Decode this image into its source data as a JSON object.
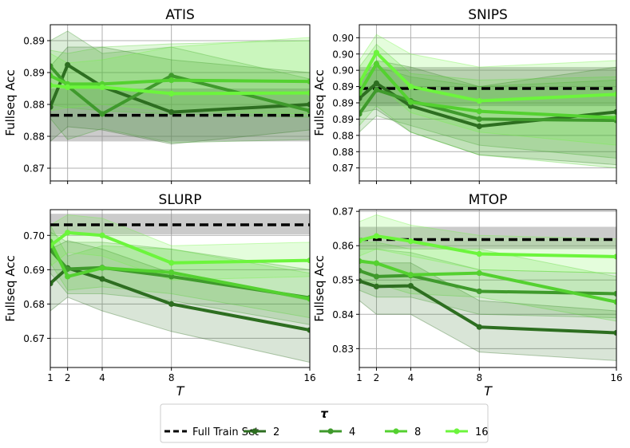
{
  "colors": {
    "tau_2": "#2d6e20",
    "tau_4": "#3f9a2c",
    "tau_8": "#54d130",
    "tau_16": "#6cf53c",
    "full_train": "#000000",
    "full_band": "#8c8c8c",
    "grid": "#b0b0b0"
  },
  "legend": {
    "title": "τ",
    "full_label": "Full Train Set",
    "entries": [
      "2",
      "4",
      "8",
      "16"
    ]
  },
  "chart_data": [
    {
      "type": "line",
      "title": "ATIS",
      "ylabel": "Fullseq Acc",
      "xlabel": "",
      "x": [
        1,
        2,
        4,
        8,
        16
      ],
      "xlim": [
        1,
        16
      ],
      "ylim": [
        0.868,
        0.8925
      ],
      "yticks": [
        0.87,
        0.875,
        0.88,
        0.885,
        0.89
      ],
      "ytick_labels": [
        "0.87",
        "0.88",
        "0.88",
        "0.89",
        "0.89"
      ],
      "show_xtick_labels": false,
      "full_train": {
        "value": 0.8783,
        "band": [
          0.8742,
          0.8825
        ]
      },
      "series": [
        {
          "name": "2",
          "values": [
            0.8796,
            0.8862,
            0.8828,
            0.8788,
            0.88
          ],
          "band_lo": [
            0.8742,
            0.8765,
            0.876,
            0.8738,
            0.876
          ],
          "band_hi": [
            0.886,
            0.889,
            0.889,
            0.887,
            0.885
          ]
        },
        {
          "name": "4",
          "values": [
            0.886,
            0.8829,
            0.8785,
            0.8845,
            0.879
          ],
          "band_lo": [
            0.8778,
            0.8745,
            0.8762,
            0.874,
            0.8745
          ],
          "band_hi": [
            0.89,
            0.8915,
            0.888,
            0.889,
            0.884
          ]
        },
        {
          "name": "8",
          "values": [
            0.8845,
            0.8832,
            0.8832,
            0.8838,
            0.8836
          ],
          "band_lo": [
            0.88,
            0.8795,
            0.879,
            0.8785,
            0.878
          ],
          "band_hi": [
            0.8885,
            0.888,
            0.889,
            0.8895,
            0.89
          ]
        },
        {
          "name": "16",
          "values": [
            0.883,
            0.8827,
            0.8827,
            0.8817,
            0.8818
          ],
          "band_lo": [
            0.879,
            0.8795,
            0.88,
            0.879,
            0.8785
          ],
          "band_hi": [
            0.888,
            0.8865,
            0.887,
            0.889,
            0.8905
          ]
        }
      ]
    },
    {
      "type": "line",
      "title": "SNIPS",
      "ylabel": "Fullseq Acc",
      "xlabel": "",
      "x": [
        1,
        2,
        4,
        8,
        16
      ],
      "xlim": [
        1,
        16
      ],
      "ylim": [
        0.8705,
        0.8945
      ],
      "yticks": [
        0.8725,
        0.875,
        0.8775,
        0.88,
        0.8825,
        0.885,
        0.8875,
        0.89,
        0.8925
      ],
      "ytick_labels": [
        "0.87",
        "0.88",
        "0.88",
        "0.89",
        "0.89",
        "0.89",
        "0.90",
        "0.90",
        "0.90"
      ],
      "show_xtick_labels": false,
      "full_train": {
        "value": 0.8847,
        "band": [
          0.882,
          0.888
        ]
      },
      "series": [
        {
          "name": "2",
          "values": [
            0.8832,
            0.8855,
            0.882,
            0.8789,
            0.8811
          ],
          "band_lo": [
            0.881,
            0.8815,
            0.878,
            0.8745,
            0.873
          ],
          "band_hi": [
            0.886,
            0.889,
            0.888,
            0.885,
            0.888
          ]
        },
        {
          "name": "4",
          "values": [
            0.8808,
            0.8845,
            0.8828,
            0.88,
            0.8798
          ],
          "band_lo": [
            0.878,
            0.8805,
            0.879,
            0.876,
            0.874
          ],
          "band_hi": [
            0.886,
            0.888,
            0.8865,
            0.885,
            0.886
          ]
        },
        {
          "name": "8",
          "values": [
            0.884,
            0.8885,
            0.8826,
            0.8812,
            0.8802
          ],
          "band_lo": [
            0.879,
            0.882,
            0.878,
            0.8745,
            0.8725
          ],
          "band_hi": [
            0.888,
            0.8915,
            0.887,
            0.886,
            0.8865
          ]
        },
        {
          "name": "16",
          "values": [
            0.8855,
            0.8902,
            0.885,
            0.8828,
            0.8838
          ],
          "band_lo": [
            0.881,
            0.8855,
            0.881,
            0.878,
            0.876
          ],
          "band_hi": [
            0.889,
            0.893,
            0.89,
            0.888,
            0.889
          ]
        }
      ]
    },
    {
      "type": "line",
      "title": "SLURP",
      "ylabel": "Fullseq Acc",
      "xlabel": "T",
      "x": [
        1,
        2,
        4,
        8,
        16
      ],
      "xlim": [
        1,
        16
      ],
      "ylim": [
        0.6615,
        0.7075
      ],
      "yticks": [
        0.67,
        0.68,
        0.69,
        0.7
      ],
      "ytick_labels": [
        "0.67",
        "0.68",
        "0.69",
        "0.70"
      ],
      "show_xtick_labels": true,
      "xtick_labels": [
        "1",
        "2",
        "4",
        "8",
        "16"
      ],
      "full_train": {
        "value": 0.7031,
        "band": [
          0.7003,
          0.7063
        ]
      },
      "series": [
        {
          "name": "2",
          "values": [
            0.686,
            0.6905,
            0.6873,
            0.68,
            0.6724
          ],
          "band_lo": [
            0.678,
            0.682,
            0.678,
            0.672,
            0.663
          ],
          "band_hi": [
            0.696,
            0.6985,
            0.696,
            0.689,
            0.681
          ]
        },
        {
          "name": "4",
          "values": [
            0.6958,
            0.6902,
            0.6906,
            0.688,
            0.6818
          ],
          "band_lo": [
            0.689,
            0.683,
            0.683,
            0.681,
            0.674
          ],
          "band_hi": [
            0.701,
            0.698,
            0.698,
            0.696,
            0.69
          ]
        },
        {
          "name": "8",
          "values": [
            0.6982,
            0.688,
            0.6905,
            0.6892,
            0.6815
          ],
          "band_lo": [
            0.692,
            0.684,
            0.685,
            0.683,
            0.676
          ],
          "band_hi": [
            0.703,
            0.694,
            0.697,
            0.696,
            0.689
          ]
        },
        {
          "name": "16",
          "values": [
            0.697,
            0.7008,
            0.7,
            0.692,
            0.6927
          ],
          "band_lo": [
            0.691,
            0.695,
            0.694,
            0.687,
            0.688
          ],
          "band_hi": [
            0.703,
            0.706,
            0.705,
            0.697,
            0.698
          ]
        }
      ]
    },
    {
      "type": "line",
      "title": "MTOP",
      "ylabel": "Fullseq Acc",
      "xlabel": "T",
      "x": [
        1,
        2,
        4,
        8,
        16
      ],
      "xlim": [
        1,
        16
      ],
      "ylim": [
        0.8245,
        0.8705
      ],
      "yticks": [
        0.83,
        0.84,
        0.85,
        0.86,
        0.87
      ],
      "ytick_labels": [
        "0.83",
        "0.84",
        "0.85",
        "0.86",
        "0.87"
      ],
      "show_xtick_labels": true,
      "xtick_labels": [
        "1",
        "2",
        "4",
        "8",
        "16"
      ],
      "full_train": {
        "value": 0.8618,
        "band": [
          0.859,
          0.8655
        ]
      },
      "series": [
        {
          "name": "2",
          "values": [
            0.8497,
            0.8481,
            0.8483,
            0.8363,
            0.8346
          ],
          "band_lo": [
            0.844,
            0.84,
            0.84,
            0.829,
            0.8265
          ],
          "band_hi": [
            0.856,
            0.855,
            0.855,
            0.844,
            0.841
          ]
        },
        {
          "name": "4",
          "values": [
            0.8527,
            0.851,
            0.8513,
            0.8467,
            0.846
          ],
          "band_lo": [
            0.847,
            0.845,
            0.845,
            0.84,
            0.839
          ],
          "band_hi": [
            0.859,
            0.859,
            0.858,
            0.853,
            0.852
          ]
        },
        {
          "name": "8",
          "values": [
            0.8555,
            0.8549,
            0.8515,
            0.852,
            0.8436
          ],
          "band_lo": [
            0.85,
            0.849,
            0.846,
            0.845,
            0.838
          ],
          "band_hi": [
            0.861,
            0.861,
            0.859,
            0.859,
            0.851
          ]
        },
        {
          "name": "16",
          "values": [
            0.8615,
            0.8628,
            0.8613,
            0.8576,
            0.8568
          ],
          "band_lo": [
            0.857,
            0.859,
            0.857,
            0.853,
            0.852
          ],
          "band_hi": [
            0.867,
            0.869,
            0.866,
            0.863,
            0.862
          ]
        }
      ]
    }
  ]
}
